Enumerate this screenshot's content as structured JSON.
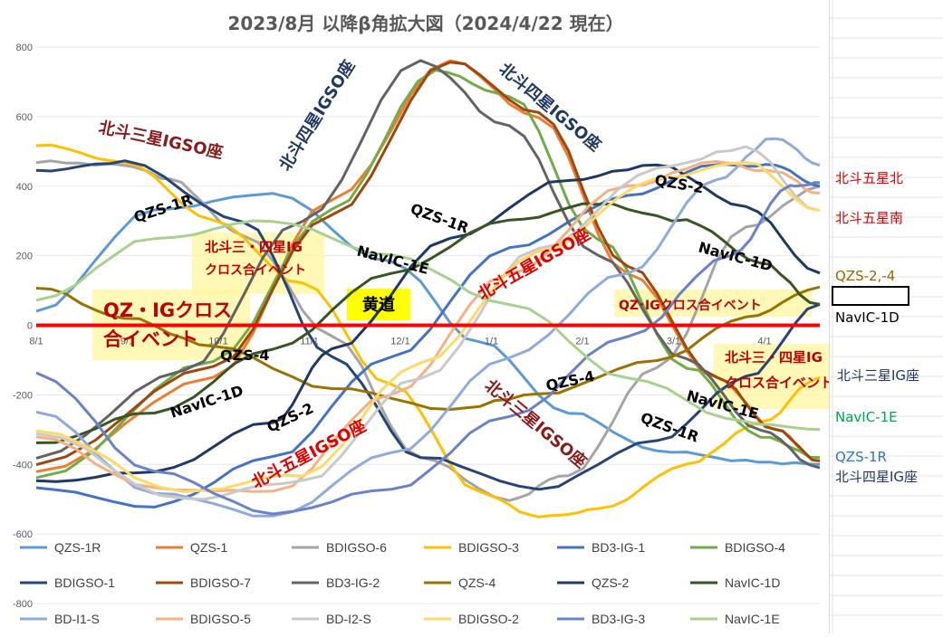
{
  "chart_data": {
    "type": "line",
    "title": "2023/8月 以降β角拡大図（2024/4/22 現在）",
    "ylim": [
      -800,
      800
    ],
    "yticks": [
      800,
      600,
      400,
      200,
      0,
      -200,
      -400,
      -600,
      -800
    ],
    "xticks": [
      "8/1",
      "9/1",
      "10/1",
      "11/1",
      "12/1",
      "1/1",
      "2/1",
      "3/1",
      "4/1"
    ],
    "x_range_days": [
      0,
      265
    ],
    "series": [
      {
        "name": "QZS-1R",
        "color": "#5b9bd5",
        "points": [
          [
            0,
            40
          ],
          [
            40,
            330
          ],
          [
            80,
            380
          ],
          [
            120,
            180
          ],
          [
            150,
            -50
          ],
          [
            180,
            -250
          ],
          [
            210,
            -360
          ],
          [
            240,
            -390
          ],
          [
            265,
            -400
          ]
        ]
      },
      {
        "name": "QZS-1",
        "color": "#ed7d31",
        "points": [
          [
            0,
            -420
          ],
          [
            60,
            -150
          ],
          [
            100,
            360
          ],
          [
            140,
            760
          ],
          [
            170,
            600
          ],
          [
            200,
            150
          ],
          [
            230,
            -150
          ],
          [
            250,
            -300
          ],
          [
            265,
            -390
          ]
        ]
      },
      {
        "name": "BDIGSO-6",
        "color": "#a5a5a5",
        "points": [
          [
            0,
            470
          ],
          [
            30,
            460
          ],
          [
            45,
            420
          ],
          [
            70,
            260
          ],
          [
            100,
            -30
          ],
          [
            130,
            -380
          ],
          [
            160,
            -500
          ],
          [
            180,
            -430
          ],
          [
            210,
            -120
          ],
          [
            240,
            280
          ],
          [
            265,
            400
          ]
        ]
      },
      {
        "name": "BDIGSO-3",
        "color": "#ffc000",
        "points": [
          [
            0,
            520
          ],
          [
            30,
            470
          ],
          [
            60,
            300
          ],
          [
            90,
            120
          ],
          [
            120,
            -170
          ],
          [
            150,
            -480
          ],
          [
            170,
            -550
          ],
          [
            190,
            -530
          ],
          [
            220,
            -400
          ],
          [
            245,
            -280
          ],
          [
            265,
            -150
          ]
        ]
      },
      {
        "name": "BD3-IG-1",
        "color": "#4472c4",
        "points": [
          [
            0,
            -470
          ],
          [
            40,
            -520
          ],
          [
            80,
            -380
          ],
          [
            120,
            -90
          ],
          [
            160,
            220
          ],
          [
            200,
            370
          ],
          [
            230,
            460
          ],
          [
            250,
            460
          ],
          [
            265,
            400
          ]
        ]
      },
      {
        "name": "BDIGSO-4",
        "color": "#70ad47",
        "points": [
          [
            0,
            -440
          ],
          [
            60,
            -100
          ],
          [
            100,
            330
          ],
          [
            135,
            730
          ],
          [
            160,
            660
          ],
          [
            190,
            250
          ],
          [
            220,
            -120
          ],
          [
            245,
            -320
          ],
          [
            265,
            -380
          ]
        ]
      },
      {
        "name": "BDIGSO-1",
        "color": "#264478",
        "points": [
          [
            0,
            445
          ],
          [
            30,
            470
          ],
          [
            70,
            300
          ],
          [
            100,
            -90
          ],
          [
            130,
            -380
          ],
          [
            170,
            -470
          ],
          [
            210,
            -330
          ],
          [
            240,
            -150
          ],
          [
            265,
            60
          ]
        ]
      },
      {
        "name": "BDIGSO-7",
        "color": "#9e480e",
        "points": [
          [
            0,
            -400
          ],
          [
            60,
            -120
          ],
          [
            100,
            320
          ],
          [
            140,
            760
          ],
          [
            170,
            610
          ],
          [
            200,
            170
          ],
          [
            230,
            -150
          ],
          [
            250,
            -300
          ],
          [
            265,
            -390
          ]
        ]
      },
      {
        "name": "BD3-IG-2",
        "color": "#636363",
        "points": [
          [
            0,
            -380
          ],
          [
            50,
            -130
          ],
          [
            90,
            300
          ],
          [
            130,
            760
          ],
          [
            160,
            570
          ],
          [
            190,
            200
          ],
          [
            220,
            -100
          ],
          [
            245,
            -300
          ],
          [
            265,
            -410
          ]
        ]
      },
      {
        "name": "QZS-4",
        "color": "#997300",
        "points": [
          [
            0,
            110
          ],
          [
            30,
            20
          ],
          [
            60,
            -60
          ],
          [
            100,
            -180
          ],
          [
            140,
            -240
          ],
          [
            170,
            -200
          ],
          [
            210,
            -100
          ],
          [
            240,
            20
          ],
          [
            265,
            110
          ]
        ]
      },
      {
        "name": "QZS-2",
        "color": "#203864",
        "points": [
          [
            0,
            -450
          ],
          [
            40,
            -420
          ],
          [
            80,
            -280
          ],
          [
            100,
            -70
          ],
          [
            140,
            250
          ],
          [
            180,
            420
          ],
          [
            210,
            460
          ],
          [
            240,
            340
          ],
          [
            265,
            150
          ]
        ]
      },
      {
        "name": "NavIC-1D",
        "color": "#375623",
        "points": [
          [
            0,
            -340
          ],
          [
            40,
            -250
          ],
          [
            80,
            -70
          ],
          [
            120,
            150
          ],
          [
            160,
            300
          ],
          [
            190,
            350
          ],
          [
            220,
            300
          ],
          [
            245,
            180
          ],
          [
            265,
            60
          ]
        ]
      },
      {
        "name": "BD-I1-S",
        "color": "#8faadc",
        "points": [
          [
            0,
            -250
          ],
          [
            40,
            -480
          ],
          [
            80,
            -550
          ],
          [
            120,
            -370
          ],
          [
            160,
            -90
          ],
          [
            200,
            150
          ],
          [
            230,
            420
          ],
          [
            250,
            540
          ],
          [
            265,
            460
          ]
        ]
      },
      {
        "name": "BDIGSO-5",
        "color": "#f4b183",
        "points": [
          [
            0,
            -320
          ],
          [
            40,
            -470
          ],
          [
            80,
            -480
          ],
          [
            120,
            -200
          ],
          [
            160,
            150
          ],
          [
            200,
            400
          ],
          [
            230,
            470
          ],
          [
            250,
            440
          ],
          [
            265,
            380
          ]
        ]
      },
      {
        "name": "BD-I2-S",
        "color": "#c9c9c9",
        "points": [
          [
            0,
            -310
          ],
          [
            50,
            -500
          ],
          [
            90,
            -450
          ],
          [
            130,
            -150
          ],
          [
            170,
            220
          ],
          [
            210,
            450
          ],
          [
            240,
            510
          ],
          [
            265,
            330
          ]
        ]
      },
      {
        "name": "BDIGSO-2",
        "color": "#ffd966",
        "points": [
          [
            0,
            -300
          ],
          [
            50,
            -480
          ],
          [
            90,
            -430
          ],
          [
            130,
            -110
          ],
          [
            170,
            210
          ],
          [
            210,
            420
          ],
          [
            240,
            470
          ],
          [
            265,
            330
          ]
        ]
      },
      {
        "name": "BD3-IG-3",
        "color": "#6982c8",
        "points": [
          [
            0,
            -140
          ],
          [
            40,
            -420
          ],
          [
            80,
            -540
          ],
          [
            120,
            -470
          ],
          [
            160,
            -260
          ],
          [
            200,
            -30
          ],
          [
            235,
            200
          ],
          [
            255,
            400
          ],
          [
            265,
            410
          ]
        ]
      },
      {
        "name": "NavIC-1E",
        "color": "#a9d18e",
        "points": [
          [
            0,
            70
          ],
          [
            40,
            250
          ],
          [
            80,
            300
          ],
          [
            120,
            200
          ],
          [
            160,
            60
          ],
          [
            200,
            -150
          ],
          [
            240,
            -280
          ],
          [
            265,
            -300
          ]
        ]
      }
    ],
    "zero_line_color": "#ff0000"
  },
  "title": "2023/8月 以降β角拡大図（2024/4/22 現在）",
  "annotations": {
    "beidou3_igso_left_top": "北斗三星IGSO座",
    "beidou4_igso_rising": "北斗四星IGSO座",
    "beidou4_igso_falling": "北斗四星IGSO座",
    "qzs1r_left": "QZS-1R",
    "qzs1r_mid": "QZS-1R",
    "qzs1r_right": "QZS-1R",
    "cross_34": "北斗三・四星IG",
    "cross_34_b": "クロス合イベント",
    "navic1e_mid": "NavIC-1E",
    "navic1e_right": "NavIC-1E",
    "qz_ig_cross_a": "QZ・IGクロス",
    "qz_ig_cross_b": "合イベント",
    "ecliptic": "黄道",
    "beidou5_igso_mid": "北斗五星IGSO座",
    "beidou5_igso_low": "北斗五星IGSO座",
    "qzs2_right": "QZS-2",
    "qzs2_left": "QZS-2",
    "navic1d_right": "NavIC-1D",
    "navic1d_left": "NavIC-1D",
    "qz_ig_cross_right": "QZ･IGクロス合イベント",
    "cross_34_right_a": "北斗三・四星IG",
    "cross_34_right_b": "クロス合イベント",
    "qzs4_left": "QZS-4",
    "qzs4_right": "QZS-4",
    "beidou3_igso_low": "北斗三星IGSO座"
  },
  "side_labels": {
    "b5n": "北斗五星北",
    "b5s": "北斗五星南",
    "qzs24": "QZS-2,-4",
    "navic1d": "NavIC-1D",
    "b3ig": "北斗三星IG座",
    "navic1e": "NavIC-1E",
    "qzs1r": "QZS-1R",
    "b4ig": "北斗四星IG座"
  }
}
